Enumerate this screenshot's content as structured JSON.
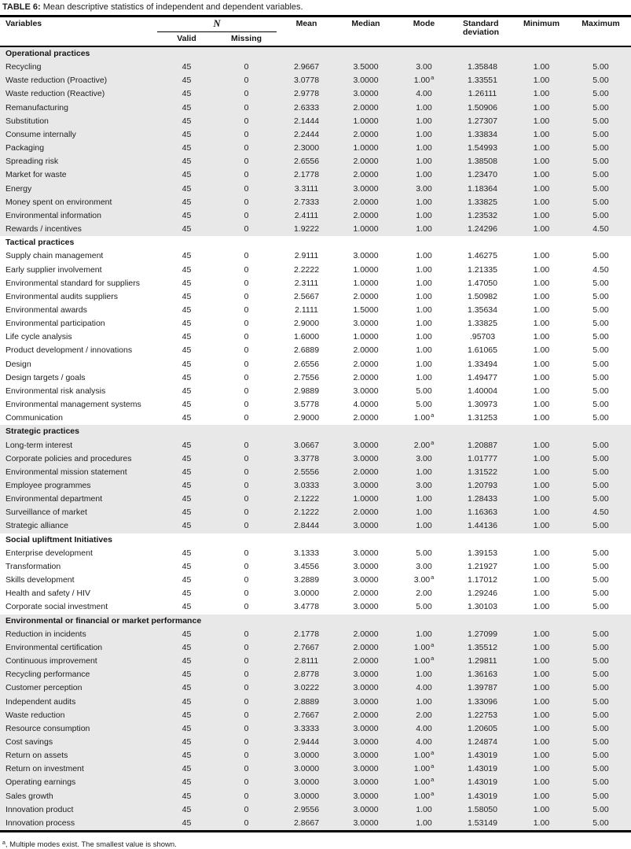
{
  "title": {
    "label": "TABLE 6:",
    "text": " Mean descriptive statistics of independent and dependent variables."
  },
  "table": {
    "header": {
      "variables": "Variables",
      "n": "N",
      "valid": "Valid",
      "missing": "Missing",
      "mean": "Mean",
      "median": "Median",
      "mode": "Mode",
      "sd": "Standard deviation",
      "minimum": "Minimum",
      "maximum": "Maximum"
    },
    "sections": [
      {
        "name": "Operational practices",
        "rows": [
          {
            "variable": "Recycling",
            "valid": "45",
            "missing": "0",
            "mean": "2.9667",
            "median": "3.5000",
            "mode": "3.00",
            "mode_note": false,
            "sd": "1.35848",
            "min": "1.00",
            "max": "5.00"
          },
          {
            "variable": "Waste reduction (Proactive)",
            "valid": "45",
            "missing": "0",
            "mean": "3.0778",
            "median": "3.0000",
            "mode": "1.00",
            "mode_note": true,
            "sd": "1.33551",
            "min": "1.00",
            "max": "5.00"
          },
          {
            "variable": "Waste reduction (Reactive)",
            "valid": "45",
            "missing": "0",
            "mean": "2.9778",
            "median": "3.0000",
            "mode": "4.00",
            "mode_note": false,
            "sd": "1.26111",
            "min": "1.00",
            "max": "5.00"
          },
          {
            "variable": "Remanufacturing",
            "valid": "45",
            "missing": "0",
            "mean": "2.6333",
            "median": "2.0000",
            "mode": "1.00",
            "mode_note": false,
            "sd": "1.50906",
            "min": "1.00",
            "max": "5.00"
          },
          {
            "variable": "Substitution",
            "valid": "45",
            "missing": "0",
            "mean": "2.1444",
            "median": "1.0000",
            "mode": "1.00",
            "mode_note": false,
            "sd": "1.27307",
            "min": "1.00",
            "max": "5.00"
          },
          {
            "variable": "Consume internally",
            "valid": "45",
            "missing": "0",
            "mean": "2.2444",
            "median": "2.0000",
            "mode": "1.00",
            "mode_note": false,
            "sd": "1.33834",
            "min": "1.00",
            "max": "5.00"
          },
          {
            "variable": "Packaging",
            "valid": "45",
            "missing": "0",
            "mean": "2.3000",
            "median": "1.0000",
            "mode": "1.00",
            "mode_note": false,
            "sd": "1.54993",
            "min": "1.00",
            "max": "5.00"
          },
          {
            "variable": "Spreading risk",
            "valid": "45",
            "missing": "0",
            "mean": "2.6556",
            "median": "2.0000",
            "mode": "1.00",
            "mode_note": false,
            "sd": "1.38508",
            "min": "1.00",
            "max": "5.00"
          },
          {
            "variable": "Market for waste",
            "valid": "45",
            "missing": "0",
            "mean": "2.1778",
            "median": "2.0000",
            "mode": "1.00",
            "mode_note": false,
            "sd": "1.23470",
            "min": "1.00",
            "max": "5.00"
          },
          {
            "variable": "Energy",
            "valid": "45",
            "missing": "0",
            "mean": "3.3111",
            "median": "3.0000",
            "mode": "3.00",
            "mode_note": false,
            "sd": "1.18364",
            "min": "1.00",
            "max": "5.00"
          },
          {
            "variable": "Money spent on environment",
            "valid": "45",
            "missing": "0",
            "mean": "2.7333",
            "median": "2.0000",
            "mode": "1.00",
            "mode_note": false,
            "sd": "1.33825",
            "min": "1.00",
            "max": "5.00"
          },
          {
            "variable": "Environmental information",
            "valid": "45",
            "missing": "0",
            "mean": "2.4111",
            "median": "2.0000",
            "mode": "1.00",
            "mode_note": false,
            "sd": "1.23532",
            "min": "1.00",
            "max": "5.00"
          },
          {
            "variable": "Rewards / incentives",
            "valid": "45",
            "missing": "0",
            "mean": "1.9222",
            "median": "1.0000",
            "mode": "1.00",
            "mode_note": false,
            "sd": "1.24296",
            "min": "1.00",
            "max": "4.50"
          }
        ]
      },
      {
        "name": "Tactical practices",
        "rows": [
          {
            "variable": "Supply chain management",
            "valid": "45",
            "missing": "0",
            "mean": "2.9111",
            "median": "3.0000",
            "mode": "1.00",
            "mode_note": false,
            "sd": "1.46275",
            "min": "1.00",
            "max": "5.00"
          },
          {
            "variable": "Early supplier involvement",
            "valid": "45",
            "missing": "0",
            "mean": "2.2222",
            "median": "1.0000",
            "mode": "1.00",
            "mode_note": false,
            "sd": "1.21335",
            "min": "1.00",
            "max": "4.50"
          },
          {
            "variable": "Environmental standard for suppliers",
            "valid": "45",
            "missing": "0",
            "mean": "2.3111",
            "median": "1.0000",
            "mode": "1.00",
            "mode_note": false,
            "sd": "1.47050",
            "min": "1.00",
            "max": "5.00"
          },
          {
            "variable": "Environmental audits suppliers",
            "valid": "45",
            "missing": "0",
            "mean": "2.5667",
            "median": "2.0000",
            "mode": "1.00",
            "mode_note": false,
            "sd": "1.50982",
            "min": "1.00",
            "max": "5.00"
          },
          {
            "variable": "Environmental awards",
            "valid": "45",
            "missing": "0",
            "mean": "2.1111",
            "median": "1.5000",
            "mode": "1.00",
            "mode_note": false,
            "sd": "1.35634",
            "min": "1.00",
            "max": "5.00"
          },
          {
            "variable": "Environmental participation",
            "valid": "45",
            "missing": "0",
            "mean": "2.9000",
            "median": "3.0000",
            "mode": "1.00",
            "mode_note": false,
            "sd": "1.33825",
            "min": "1.00",
            "max": "5.00"
          },
          {
            "variable": "Life cycle analysis",
            "valid": "45",
            "missing": "0",
            "mean": "1.6000",
            "median": "1.0000",
            "mode": "1.00",
            "mode_note": false,
            "sd": ".95703",
            "min": "1.00",
            "max": "5.00"
          },
          {
            "variable": "Product development / innovations",
            "valid": "45",
            "missing": "0",
            "mean": "2.6889",
            "median": "2.0000",
            "mode": "1.00",
            "mode_note": false,
            "sd": "1.61065",
            "min": "1.00",
            "max": "5.00"
          },
          {
            "variable": "Design",
            "valid": "45",
            "missing": "0",
            "mean": "2.6556",
            "median": "2.0000",
            "mode": "1.00",
            "mode_note": false,
            "sd": "1.33494",
            "min": "1.00",
            "max": "5.00"
          },
          {
            "variable": "Design targets / goals",
            "valid": "45",
            "missing": "0",
            "mean": "2.7556",
            "median": "2.0000",
            "mode": "1.00",
            "mode_note": false,
            "sd": "1.49477",
            "min": "1.00",
            "max": "5.00"
          },
          {
            "variable": "Environmental risk analysis",
            "valid": "45",
            "missing": "0",
            "mean": "2.9889",
            "median": "3.0000",
            "mode": "5.00",
            "mode_note": false,
            "sd": "1.40004",
            "min": "1.00",
            "max": "5.00"
          },
          {
            "variable": "Environmental management systems",
            "valid": "45",
            "missing": "0",
            "mean": "3.5778",
            "median": "4.0000",
            "mode": "5.00",
            "mode_note": false,
            "sd": "1.30973",
            "min": "1.00",
            "max": "5.00"
          },
          {
            "variable": "Communication",
            "valid": "45",
            "missing": "0",
            "mean": "2.9000",
            "median": "2.0000",
            "mode": "1.00",
            "mode_note": true,
            "sd": "1.31253",
            "min": "1.00",
            "max": "5.00"
          }
        ]
      },
      {
        "name": "Strategic practices",
        "rows": [
          {
            "variable": "Long-term interest",
            "valid": "45",
            "missing": "0",
            "mean": "3.0667",
            "median": "3.0000",
            "mode": "2.00",
            "mode_note": true,
            "sd": "1.20887",
            "min": "1.00",
            "max": "5.00"
          },
          {
            "variable": "Corporate policies and procedures",
            "valid": "45",
            "missing": "0",
            "mean": "3.3778",
            "median": "3.0000",
            "mode": "3.00",
            "mode_note": false,
            "sd": "1.01777",
            "min": "1.00",
            "max": "5.00"
          },
          {
            "variable": "Environmental mission statement",
            "valid": "45",
            "missing": "0",
            "mean": "2.5556",
            "median": "2.0000",
            "mode": "1.00",
            "mode_note": false,
            "sd": "1.31522",
            "min": "1.00",
            "max": "5.00"
          },
          {
            "variable": "Employee programmes",
            "valid": "45",
            "missing": "0",
            "mean": "3.0333",
            "median": "3.0000",
            "mode": "3.00",
            "mode_note": false,
            "sd": "1.20793",
            "min": "1.00",
            "max": "5.00"
          },
          {
            "variable": "Environmental department",
            "valid": "45",
            "missing": "0",
            "mean": "2.1222",
            "median": "1.0000",
            "mode": "1.00",
            "mode_note": false,
            "sd": "1.28433",
            "min": "1.00",
            "max": "5.00"
          },
          {
            "variable": "Surveillance of market",
            "valid": "45",
            "missing": "0",
            "mean": "2.1222",
            "median": "2.0000",
            "mode": "1.00",
            "mode_note": false,
            "sd": "1.16363",
            "min": "1.00",
            "max": "4.50"
          },
          {
            "variable": "Strategic alliance",
            "valid": "45",
            "missing": "0",
            "mean": "2.8444",
            "median": "3.0000",
            "mode": "1.00",
            "mode_note": false,
            "sd": "1.44136",
            "min": "1.00",
            "max": "5.00"
          }
        ]
      },
      {
        "name": "Social upliftment Initiatives",
        "rows": [
          {
            "variable": "Enterprise development",
            "valid": "45",
            "missing": "0",
            "mean": "3.1333",
            "median": "3.0000",
            "mode": "5.00",
            "mode_note": false,
            "sd": "1.39153",
            "min": "1.00",
            "max": "5.00"
          },
          {
            "variable": "Transformation",
            "valid": "45",
            "missing": "0",
            "mean": "3.4556",
            "median": "3.0000",
            "mode": "3.00",
            "mode_note": false,
            "sd": "1.21927",
            "min": "1.00",
            "max": "5.00"
          },
          {
            "variable": "Skills development",
            "valid": "45",
            "missing": "0",
            "mean": "3.2889",
            "median": "3.0000",
            "mode": "3.00",
            "mode_note": true,
            "sd": "1.17012",
            "min": "1.00",
            "max": "5.00"
          },
          {
            "variable": "Health and safety / HIV",
            "valid": "45",
            "missing": "0",
            "mean": "3.0000",
            "median": "2.0000",
            "mode": "2.00",
            "mode_note": false,
            "sd": "1.29246",
            "min": "1.00",
            "max": "5.00"
          },
          {
            "variable": "Corporate social investment",
            "valid": "45",
            "missing": "0",
            "mean": "3.4778",
            "median": "3.0000",
            "mode": "5.00",
            "mode_note": false,
            "sd": "1.30103",
            "min": "1.00",
            "max": "5.00"
          }
        ]
      },
      {
        "name": "Environmental or financial or market performance",
        "rows": [
          {
            "variable": "Reduction in incidents",
            "valid": "45",
            "missing": "0",
            "mean": "2.1778",
            "median": "2.0000",
            "mode": "1.00",
            "mode_note": false,
            "sd": "1.27099",
            "min": "1.00",
            "max": "5.00"
          },
          {
            "variable": "Environmental certification",
            "valid": "45",
            "missing": "0",
            "mean": "2.7667",
            "median": "2.0000",
            "mode": "1.00",
            "mode_note": true,
            "sd": "1.35512",
            "min": "1.00",
            "max": "5.00"
          },
          {
            "variable": "Continuous improvement",
            "valid": "45",
            "missing": "0",
            "mean": "2.8111",
            "median": "2.0000",
            "mode": "1.00",
            "mode_note": true,
            "sd": "1.29811",
            "min": "1.00",
            "max": "5.00"
          },
          {
            "variable": "Recycling performance",
            "valid": "45",
            "missing": "0",
            "mean": "2.8778",
            "median": "3.0000",
            "mode": "1.00",
            "mode_note": false,
            "sd": "1.36163",
            "min": "1.00",
            "max": "5.00"
          },
          {
            "variable": "Customer perception",
            "valid": "45",
            "missing": "0",
            "mean": "3.0222",
            "median": "3.0000",
            "mode": "4.00",
            "mode_note": false,
            "sd": "1.39787",
            "min": "1.00",
            "max": "5.00"
          },
          {
            "variable": "Independent audits",
            "valid": "45",
            "missing": "0",
            "mean": "2.8889",
            "median": "3.0000",
            "mode": "1.00",
            "mode_note": false,
            "sd": "1.33096",
            "min": "1.00",
            "max": "5.00"
          },
          {
            "variable": "Waste reduction",
            "valid": "45",
            "missing": "0",
            "mean": "2.7667",
            "median": "2.0000",
            "mode": "2.00",
            "mode_note": false,
            "sd": "1.22753",
            "min": "1.00",
            "max": "5.00"
          },
          {
            "variable": "Resource consumption",
            "valid": "45",
            "missing": "0",
            "mean": "3.3333",
            "median": "3.0000",
            "mode": "4.00",
            "mode_note": false,
            "sd": "1.20605",
            "min": "1.00",
            "max": "5.00"
          },
          {
            "variable": "Cost savings",
            "valid": "45",
            "missing": "0",
            "mean": "2.9444",
            "median": "3.0000",
            "mode": "4.00",
            "mode_note": false,
            "sd": "1.24874",
            "min": "1.00",
            "max": "5.00"
          },
          {
            "variable": "Return on assets",
            "valid": "45",
            "missing": "0",
            "mean": "3.0000",
            "median": "3.0000",
            "mode": "1.00",
            "mode_note": true,
            "sd": "1.43019",
            "min": "1.00",
            "max": "5.00"
          },
          {
            "variable": "Return on investment",
            "valid": "45",
            "missing": "0",
            "mean": "3.0000",
            "median": "3.0000",
            "mode": "1.00",
            "mode_note": true,
            "sd": "1.43019",
            "min": "1.00",
            "max": "5.00"
          },
          {
            "variable": "Operating earnings",
            "valid": "45",
            "missing": "0",
            "mean": "3.0000",
            "median": "3.0000",
            "mode": "1.00",
            "mode_note": true,
            "sd": "1.43019",
            "min": "1.00",
            "max": "5.00"
          },
          {
            "variable": "Sales growth",
            "valid": "45",
            "missing": "0",
            "mean": "3.0000",
            "median": "3.0000",
            "mode": "1.00",
            "mode_note": true,
            "sd": "1.43019",
            "min": "1.00",
            "max": "5.00"
          },
          {
            "variable": "Innovation product",
            "valid": "45",
            "missing": "0",
            "mean": "2.9556",
            "median": "3.0000",
            "mode": "1.00",
            "mode_note": false,
            "sd": "1.58050",
            "min": "1.00",
            "max": "5.00"
          },
          {
            "variable": "Innovation process",
            "valid": "45",
            "missing": "0",
            "mean": "2.8667",
            "median": "3.0000",
            "mode": "1.00",
            "mode_note": false,
            "sd": "1.53149",
            "min": "1.00",
            "max": "5.00"
          }
        ]
      }
    ]
  },
  "footnote": {
    "marker": "a",
    "text": ", Multiple modes exist. The smallest value is shown."
  },
  "colors": {
    "shaded_row_background": "#e9e8e8",
    "rule_color": "#000000",
    "text_color": "#1e1c1c"
  }
}
